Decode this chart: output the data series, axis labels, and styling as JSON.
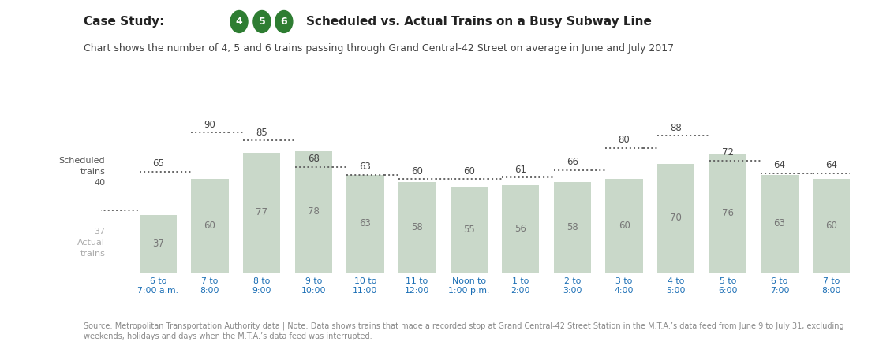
{
  "time_labels": [
    "6 to\n7:00 a.m.",
    "7 to\n8:00",
    "8 to\n9:00",
    "9 to\n10:00",
    "10 to\n11:00",
    "11 to\n12:00",
    "Noon to\n1:00 p.m.",
    "1 to\n2:00",
    "2 to\n3:00",
    "3 to\n4:00",
    "4 to\n5:00",
    "5 to\n6:00",
    "6 to\n7:00",
    "7 to\n8:00"
  ],
  "scheduled": [
    65,
    90,
    85,
    68,
    63,
    60,
    60,
    61,
    66,
    80,
    88,
    72,
    64,
    64
  ],
  "actual": [
    37,
    60,
    77,
    78,
    63,
    58,
    55,
    56,
    58,
    60,
    70,
    76,
    63,
    60
  ],
  "bar_color": "#c9d8c9",
  "dotted_line_color": "#666666",
  "bar_edge_color": "#c9d8c9",
  "circle_numbers": [
    "4",
    "5",
    "6"
  ],
  "circle_color": "#2e7d32",
  "circle_text_color": "#ffffff",
  "number_color_scheduled": "#444444",
  "number_color_actual": "#777777",
  "xlabel_color": "#1a6eb5",
  "title_color": "#222222",
  "subtitle_color": "#444444",
  "source_color": "#888888",
  "left_label_color": "#555555",
  "background_color": "#ffffff",
  "source_text": "Source: Metropolitan Transportation Authority data | Note: Data shows trains that made a recorded stop at Grand Central-42 Street Station in the M.T.A.’s data feed from June 9 to July 31, excluding\nweekends, holidays and days when the M.T.A.’s data feed was interrupted."
}
